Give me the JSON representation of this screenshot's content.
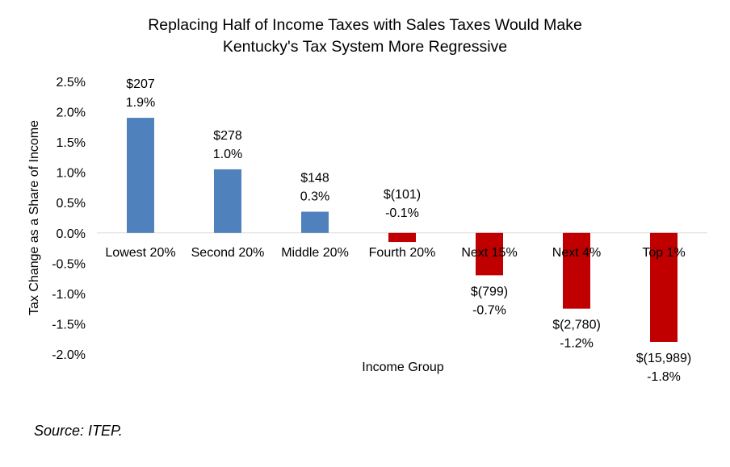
{
  "chart_data": {
    "type": "bar",
    "title": [
      "Replacing Half of Income Taxes with Sales Taxes Would Make",
      "Kentucky's Tax System More Regressive"
    ],
    "xlabel": "Income Group",
    "ylabel": "Tax Change as a Share of Income",
    "ylim": [
      -2.0,
      2.5
    ],
    "yticks": [
      "2.5%",
      "2.0%",
      "1.5%",
      "1.0%",
      "0.5%",
      "0.0%",
      "-0.5%",
      "-1.0%",
      "-1.5%",
      "-2.0%"
    ],
    "ytick_values": [
      2.5,
      2.0,
      1.5,
      1.0,
      0.5,
      0.0,
      -0.5,
      -1.0,
      -1.5,
      -2.0
    ],
    "categories": [
      "Lowest 20%",
      "Second 20%",
      "Middle 20%",
      "Fourth 20%",
      "Next 15%",
      "Next 4%",
      "Top 1%"
    ],
    "values": [
      1.9,
      1.05,
      0.35,
      -0.15,
      -0.7,
      -1.25,
      -1.8
    ],
    "dollar_labels": [
      "$207",
      "$278",
      "$148",
      "$(101)",
      "$(799)",
      "$(2,780)",
      "$(15,989)"
    ],
    "percent_labels": [
      "1.9%",
      "1.0%",
      "0.3%",
      "-0.1%",
      "-0.7%",
      "-1.2%",
      "-1.8%"
    ],
    "colors": {
      "positive": "#4F81BD",
      "negative": "#C00000",
      "axis": "#D9D9D9"
    },
    "grid": false,
    "legend": "none"
  },
  "source": "Source: ITEP."
}
